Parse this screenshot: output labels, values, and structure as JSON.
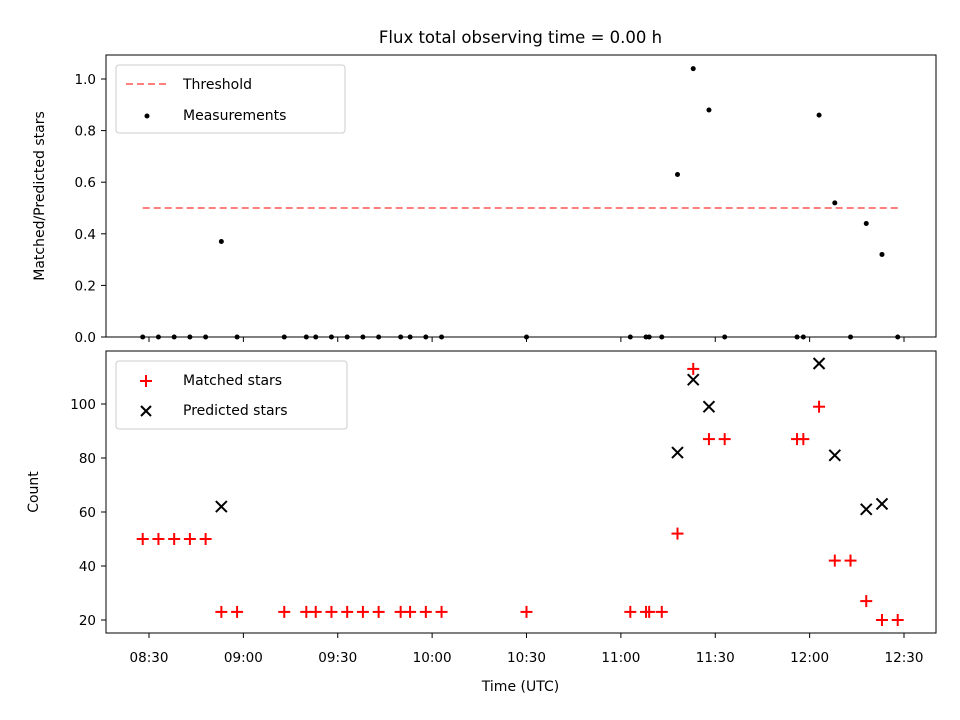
{
  "chart_data": [
    {
      "type": "scatter",
      "title": "Flux total observing time = 0.00 h",
      "xlabel": "",
      "ylabel": "Matched/Predicted stars",
      "ylim": [
        0,
        1.09
      ],
      "x_ticks": [
        "08:30",
        "09:00",
        "09:30",
        "10:00",
        "10:30",
        "11:00",
        "11:30",
        "12:00",
        "12:30"
      ],
      "y_ticks": [
        "0.0",
        "0.2",
        "0.4",
        "0.6",
        "0.8",
        "1.0"
      ],
      "legend": {
        "position": "top-left",
        "entries": [
          "Threshold",
          "Measurements"
        ]
      },
      "threshold": {
        "name": "Threshold",
        "value": 0.5,
        "x_start": "08:28",
        "x_end": "12:28",
        "color": "#ff7f7f",
        "style": "dashed"
      },
      "series": [
        {
          "name": "Measurements",
          "color": "#000000",
          "points": [
            [
              "08:28",
              0.0
            ],
            [
              "08:33",
              0.0
            ],
            [
              "08:38",
              0.0
            ],
            [
              "08:43",
              0.0
            ],
            [
              "08:48",
              0.0
            ],
            [
              "08:53",
              0.37
            ],
            [
              "08:58",
              0.0
            ],
            [
              "09:13",
              0.0
            ],
            [
              "09:20",
              0.0
            ],
            [
              "09:23",
              0.0
            ],
            [
              "09:28",
              0.0
            ],
            [
              "09:33",
              0.0
            ],
            [
              "09:38",
              0.0
            ],
            [
              "09:43",
              0.0
            ],
            [
              "09:50",
              0.0
            ],
            [
              "09:53",
              0.0
            ],
            [
              "09:58",
              0.0
            ],
            [
              "10:03",
              0.0
            ],
            [
              "10:30",
              0.0
            ],
            [
              "11:03",
              0.0
            ],
            [
              "11:08",
              0.0
            ],
            [
              "11:09",
              0.0
            ],
            [
              "11:13",
              0.0
            ],
            [
              "11:18",
              0.63
            ],
            [
              "11:23",
              1.04
            ],
            [
              "11:28",
              0.88
            ],
            [
              "11:33",
              0.0
            ],
            [
              "11:56",
              0.0
            ],
            [
              "11:58",
              0.0
            ],
            [
              "12:03",
              0.86
            ],
            [
              "12:08",
              0.52
            ],
            [
              "12:13",
              0.0
            ],
            [
              "12:18",
              0.44
            ],
            [
              "12:23",
              0.32
            ],
            [
              "12:28",
              0.0
            ]
          ]
        }
      ]
    },
    {
      "type": "scatter",
      "title": "",
      "xlabel": "Time (UTC)",
      "ylabel": "Count",
      "ylim": [
        15,
        120
      ],
      "x_ticks": [
        "08:30",
        "09:00",
        "09:30",
        "10:00",
        "10:30",
        "11:00",
        "11:30",
        "12:00",
        "12:30"
      ],
      "y_ticks": [
        "20",
        "40",
        "60",
        "80",
        "100"
      ],
      "legend": {
        "position": "top-left",
        "entries": [
          "Matched stars",
          "Predicted stars"
        ]
      },
      "series": [
        {
          "name": "Matched stars",
          "marker": "plus",
          "color": "#ff0000",
          "points": [
            [
              "08:28",
              50
            ],
            [
              "08:33",
              50
            ],
            [
              "08:38",
              50
            ],
            [
              "08:43",
              50
            ],
            [
              "08:48",
              50
            ],
            [
              "08:53",
              23
            ],
            [
              "08:58",
              23
            ],
            [
              "09:13",
              23
            ],
            [
              "09:20",
              23
            ],
            [
              "09:23",
              23
            ],
            [
              "09:28",
              23
            ],
            [
              "09:33",
              23
            ],
            [
              "09:38",
              23
            ],
            [
              "09:43",
              23
            ],
            [
              "09:50",
              23
            ],
            [
              "09:53",
              23
            ],
            [
              "09:58",
              23
            ],
            [
              "10:03",
              23
            ],
            [
              "10:30",
              23
            ],
            [
              "11:03",
              23
            ],
            [
              "11:08",
              23
            ],
            [
              "11:09",
              23
            ],
            [
              "11:13",
              23
            ],
            [
              "11:18",
              52
            ],
            [
              "11:23",
              113
            ],
            [
              "11:28",
              87
            ],
            [
              "11:33",
              87
            ],
            [
              "11:56",
              87
            ],
            [
              "11:58",
              87
            ],
            [
              "12:03",
              99
            ],
            [
              "12:08",
              42
            ],
            [
              "12:13",
              42
            ],
            [
              "12:18",
              27
            ],
            [
              "12:23",
              20
            ],
            [
              "12:28",
              20
            ]
          ]
        },
        {
          "name": "Predicted stars",
          "marker": "x",
          "color": "#000000",
          "points": [
            [
              "08:53",
              62
            ],
            [
              "11:18",
              82
            ],
            [
              "11:23",
              109
            ],
            [
              "11:28",
              99
            ],
            [
              "12:03",
              115
            ],
            [
              "12:08",
              81
            ],
            [
              "12:18",
              61
            ],
            [
              "12:23",
              63
            ]
          ]
        }
      ]
    }
  ]
}
